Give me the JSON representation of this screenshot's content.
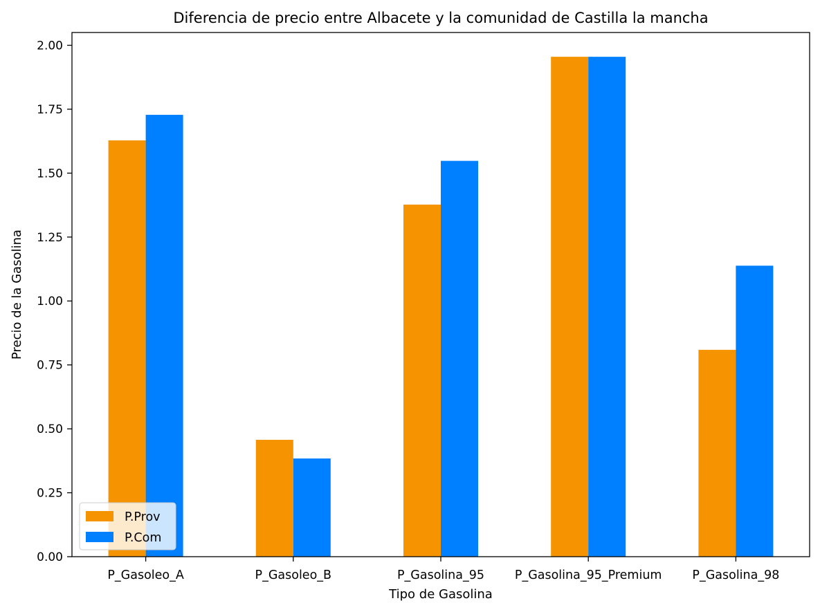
{
  "chart_data": {
    "type": "bar",
    "title": "Diferencia de precio entre Albacete y la comunidad de Castilla la mancha",
    "xlabel": "Tipo de Gasolina",
    "ylabel": "Precio de la Gasolina",
    "categories": [
      "P_Gasoleo_A",
      "P_Gasoleo_B",
      "P_Gasolina_95",
      "P_Gasolina_95_Premium",
      "P_Gasolina_98"
    ],
    "series": [
      {
        "name": "P.Prov",
        "color": "#f59300",
        "values": [
          1.628,
          0.457,
          1.377,
          1.955,
          0.809
        ]
      },
      {
        "name": "P.Com",
        "color": "#007fff",
        "values": [
          1.728,
          0.384,
          1.548,
          1.955,
          1.138
        ]
      }
    ],
    "ylim": [
      0,
      2.05
    ],
    "yticks": [
      0.0,
      0.25,
      0.5,
      0.75,
      1.0,
      1.25,
      1.5,
      1.75,
      2.0
    ],
    "ytick_labels": [
      "0.00",
      "0.25",
      "0.50",
      "0.75",
      "1.00",
      "1.25",
      "1.50",
      "1.75",
      "2.00"
    ],
    "grid": false,
    "legend_position": "lower-left"
  }
}
